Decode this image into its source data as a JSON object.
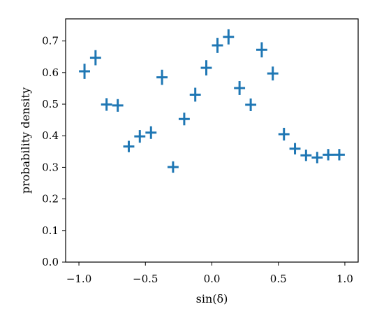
{
  "chart_data": {
    "type": "scatter",
    "title": "",
    "xlabel": "sin(δ)",
    "ylabel": "probability density",
    "xlim": [
      -1.1,
      1.1
    ],
    "ylim": [
      0.0,
      0.77
    ],
    "x_ticks": [
      -1.0,
      -0.5,
      0.0,
      0.5,
      1.0
    ],
    "x_tick_labels": [
      "−1.0",
      "−0.5",
      "0.0",
      "0.5",
      "1.0"
    ],
    "y_ticks": [
      0.0,
      0.1,
      0.2,
      0.3,
      0.4,
      0.5,
      0.6,
      0.7
    ],
    "y_tick_labels": [
      "0.0",
      "0.1",
      "0.2",
      "0.3",
      "0.4",
      "0.5",
      "0.6",
      "0.7"
    ],
    "grid": false,
    "legend": "none",
    "marker": "errorbar-cross",
    "color": "#1f77b4",
    "x_error": 0.0417,
    "series": [
      {
        "x": [
          -0.958,
          -0.875,
          -0.792,
          -0.708,
          -0.625,
          -0.542,
          -0.458,
          -0.375,
          -0.292,
          -0.208,
          -0.125,
          -0.042,
          0.042,
          0.125,
          0.208,
          0.292,
          0.375,
          0.458,
          0.542,
          0.625,
          0.708,
          0.792,
          0.875,
          0.958
        ],
        "y": [
          0.604,
          0.647,
          0.499,
          0.496,
          0.366,
          0.398,
          0.41,
          0.585,
          0.301,
          0.453,
          0.53,
          0.615,
          0.686,
          0.713,
          0.551,
          0.498,
          0.672,
          0.597,
          0.405,
          0.359,
          0.338,
          0.331,
          0.34,
          0.34
        ],
        "y_err": [
          0.024,
          0.024,
          0.02,
          0.02,
          0.018,
          0.02,
          0.02,
          0.024,
          0.018,
          0.02,
          0.022,
          0.024,
          0.024,
          0.024,
          0.022,
          0.02,
          0.024,
          0.022,
          0.02,
          0.018,
          0.018,
          0.018,
          0.018,
          0.018
        ]
      }
    ]
  }
}
